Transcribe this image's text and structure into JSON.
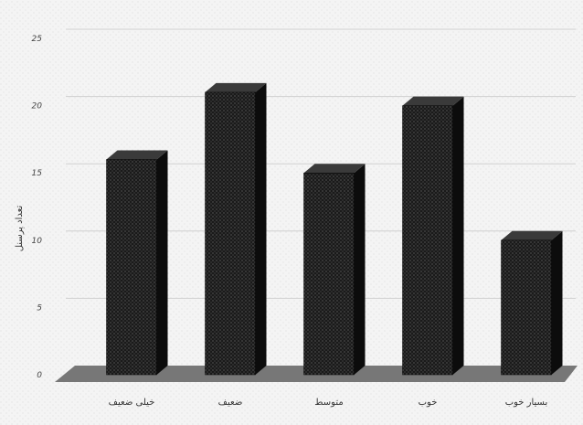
{
  "chart_data": {
    "type": "bar",
    "categories": [
      "خیلی ضعیف",
      "ضعیف",
      "متوسط",
      "خوب",
      "بسیار خوب"
    ],
    "values": [
      16,
      21,
      15,
      20,
      10
    ],
    "ylabel": "تعداد پرسنل",
    "ylim": [
      0,
      25
    ],
    "yticks": [
      0,
      5,
      10,
      15,
      20,
      25
    ],
    "grid": true,
    "bar_style": "3d",
    "colors": {
      "bar_front": "#1a1a1a",
      "bar_side": "#0c0c0c",
      "bar_top": "#3a3a3a",
      "floor": "#777777",
      "gridline": "#d0d0d0",
      "background": "#f4f4f4"
    }
  }
}
